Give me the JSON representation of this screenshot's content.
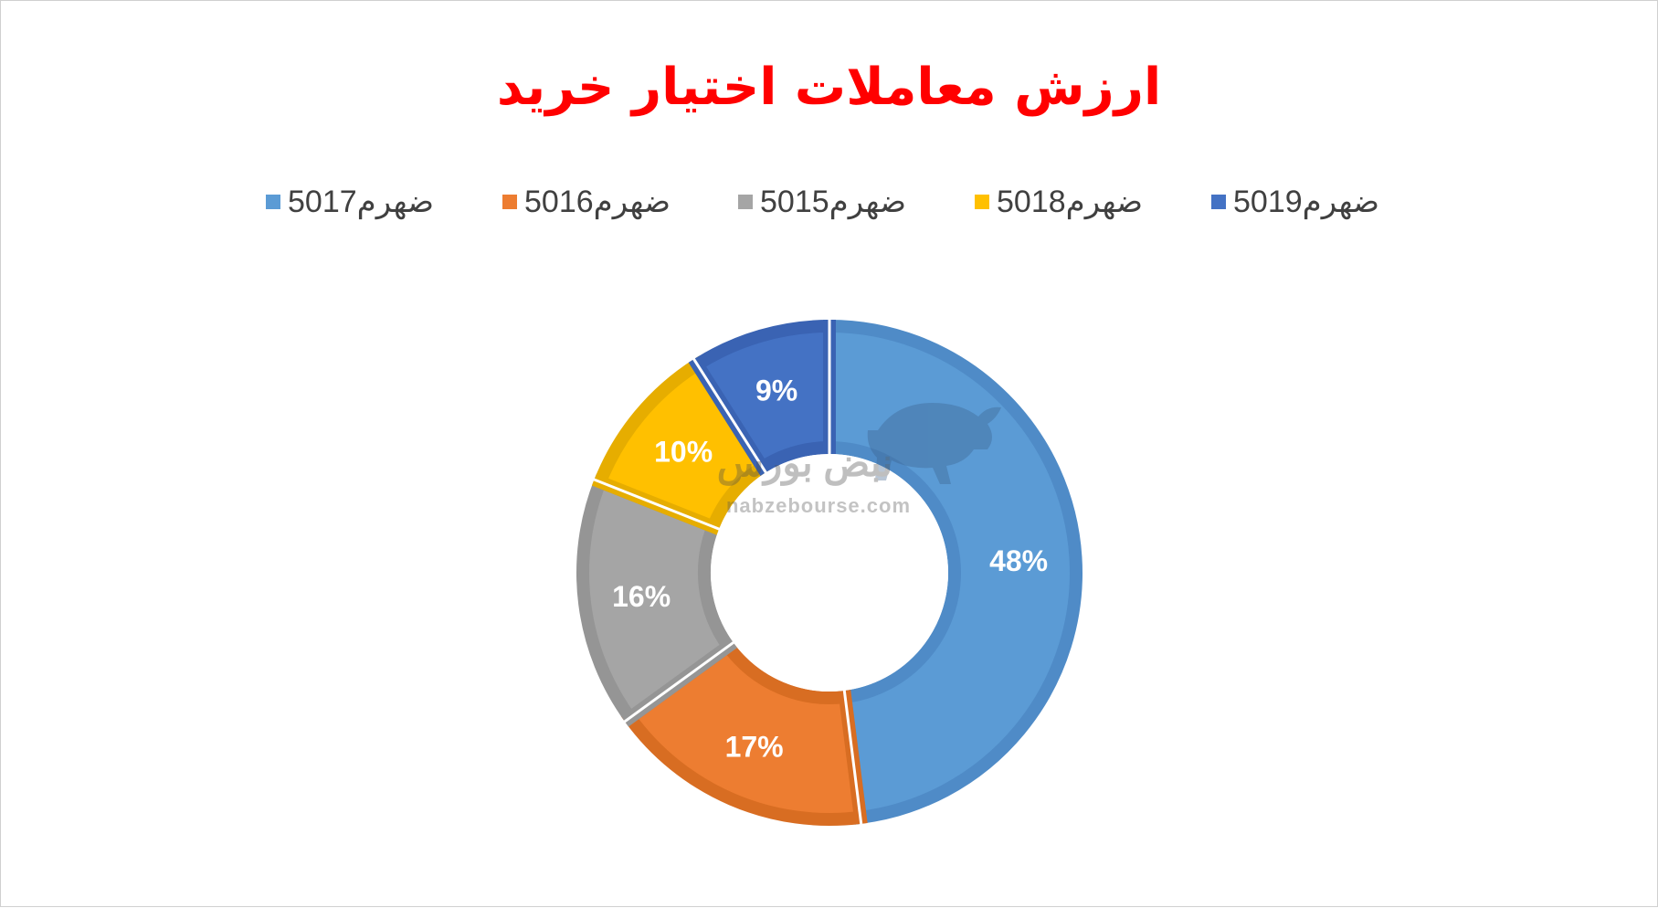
{
  "chart_data": {
    "type": "pie",
    "title": "ارزش معاملات اختیار خرید",
    "categories": [
      "ضهرم5017",
      "ضهرم5016",
      "ضهرم5015",
      "ضهرم5018",
      "ضهرم5019"
    ],
    "values": [
      48,
      17,
      16,
      10,
      9
    ],
    "data_labels": [
      "48%",
      "17%",
      "16%",
      "10%",
      "9%"
    ],
    "colors": [
      "#5b9bd5",
      "#ed7d31",
      "#a5a5a5",
      "#ffc000",
      "#4472c4"
    ],
    "border_colors": [
      "#4f8bc7",
      "#d86d22",
      "#959595",
      "#e6ad00",
      "#3a63b3"
    ],
    "label_colors": [
      "#ffffff",
      "#ffffff",
      "#ffffff",
      "#ffffff",
      "#ffffff"
    ],
    "legend_placement": "top",
    "donut": true
  },
  "title_color": "#ff0000",
  "watermark": {
    "url": "nabzebourse.com",
    "logo_text": "نبض بورس"
  }
}
